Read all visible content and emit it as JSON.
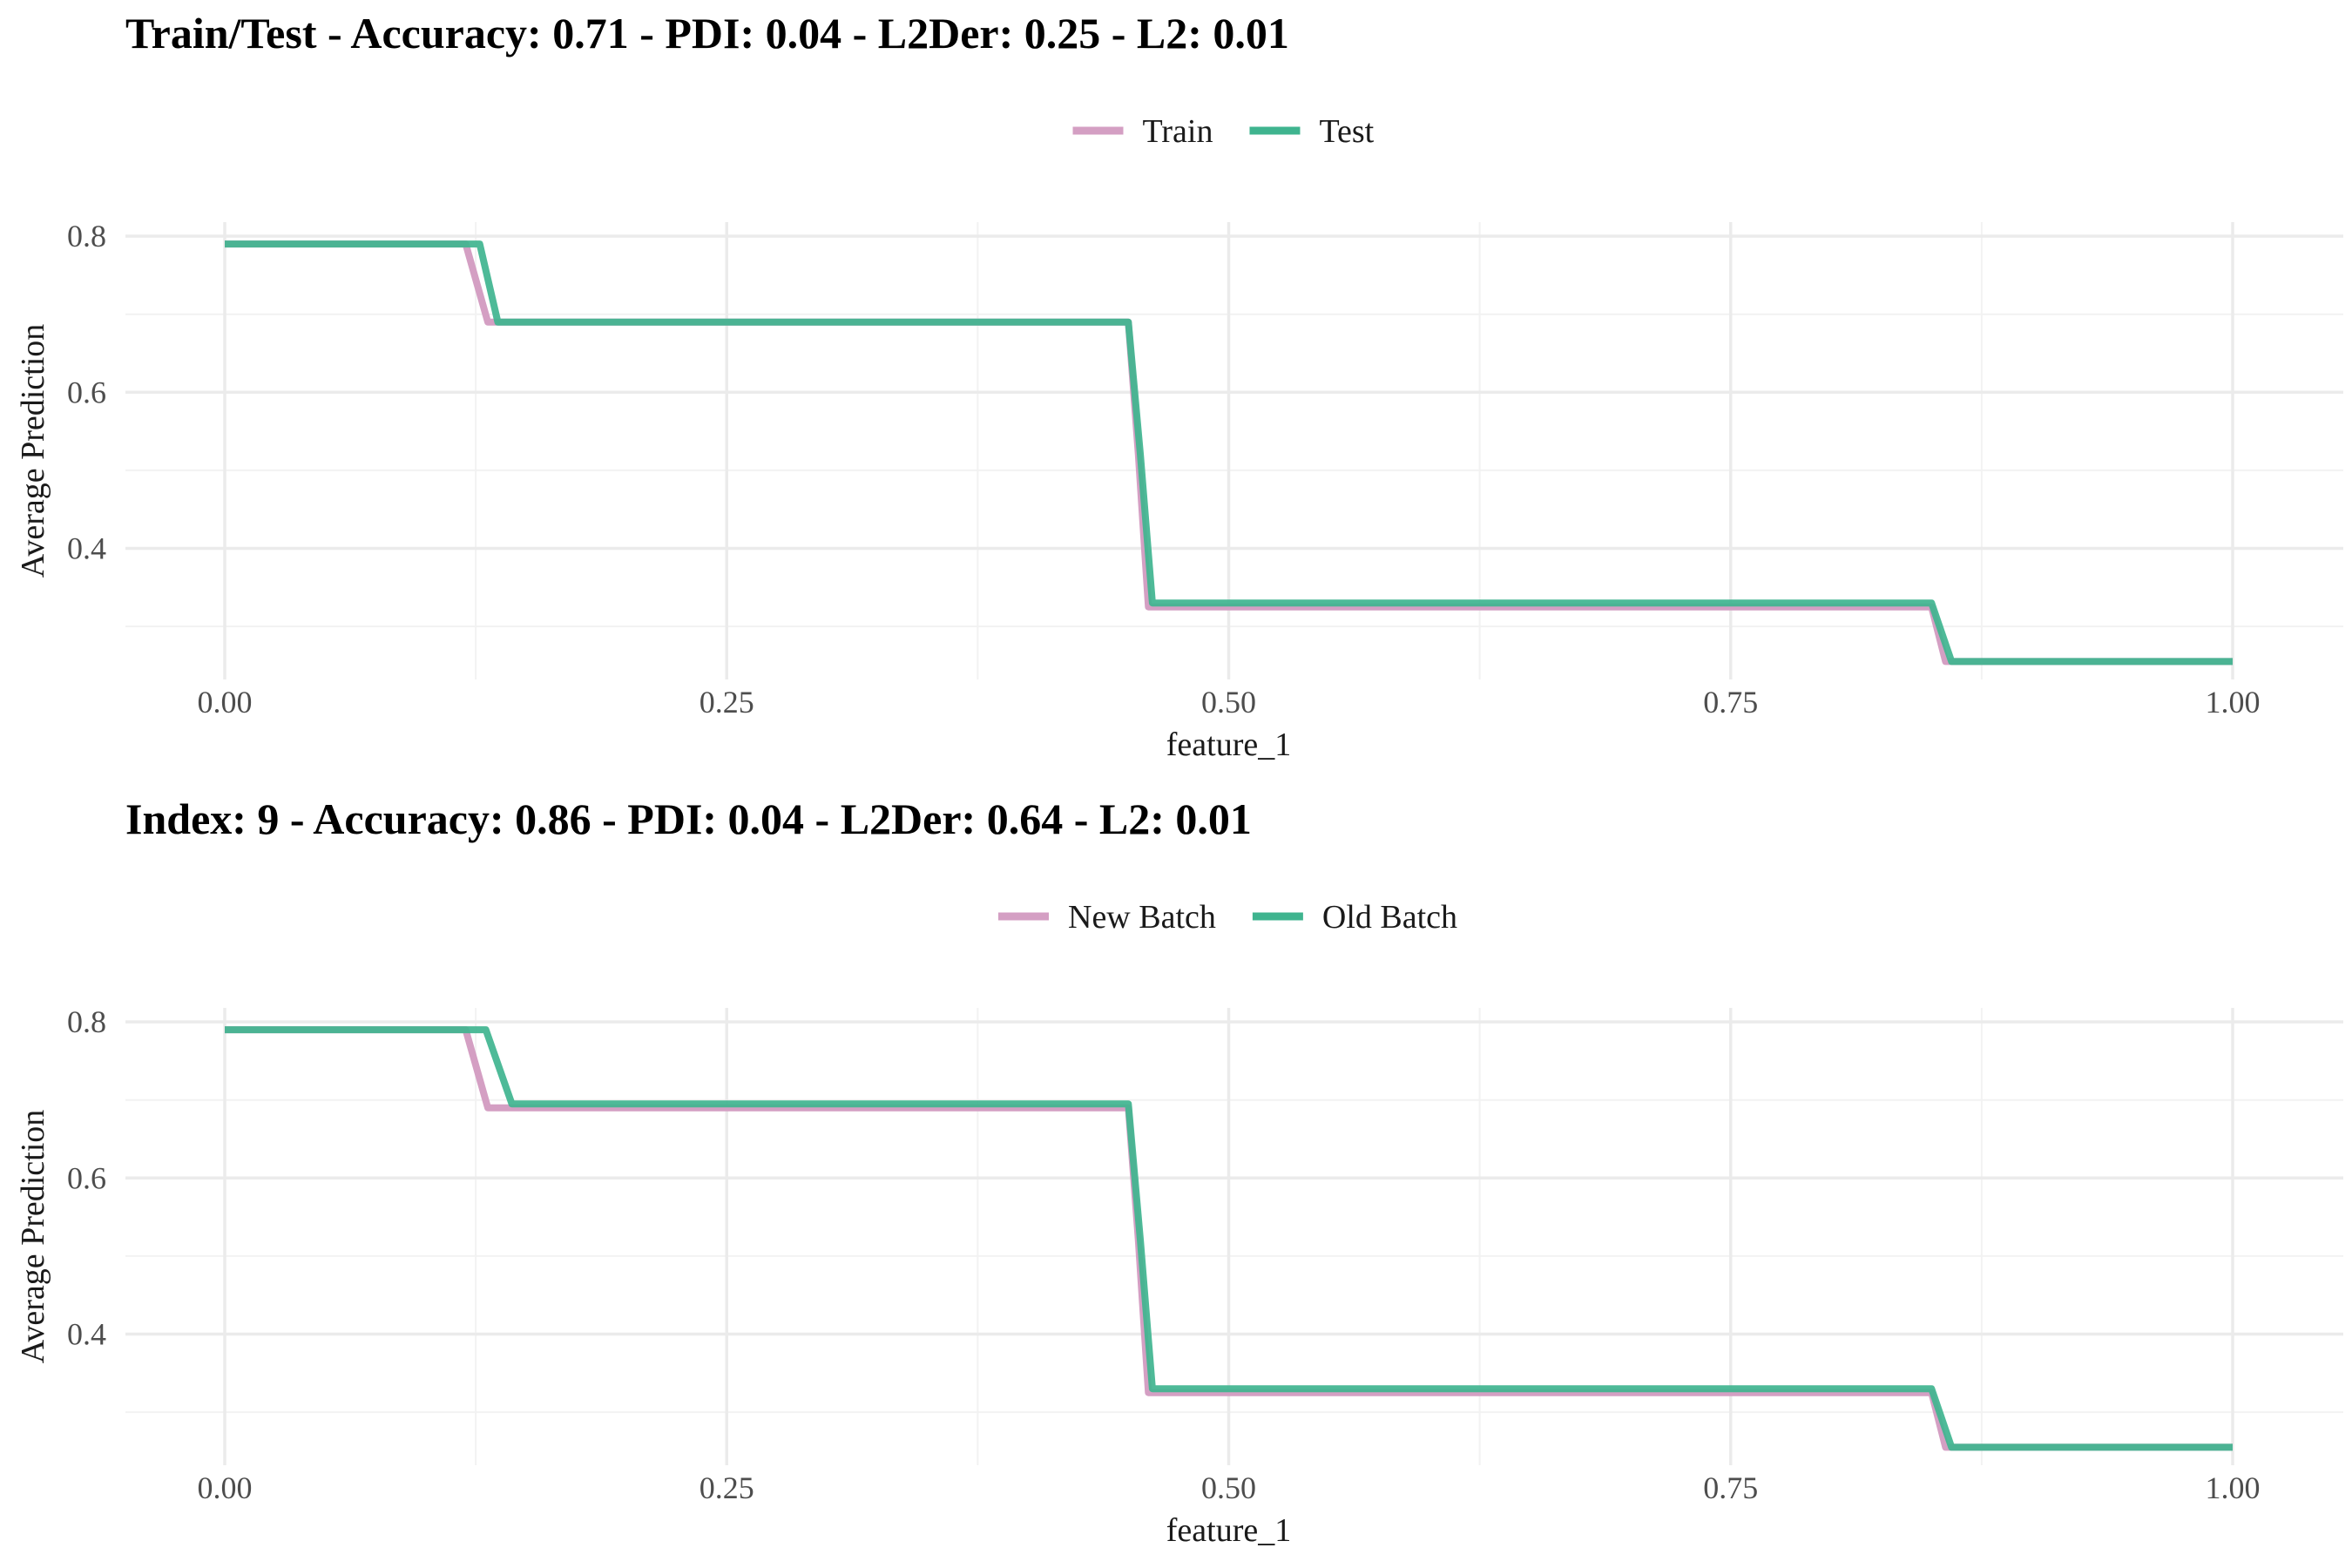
{
  "colors": {
    "series_a": "#d49fc3",
    "series_b": "#3fb48f"
  },
  "chart_data": [
    {
      "type": "line",
      "title": "Train/Test - Accuracy: 0.71 - PDI: 0.04 - L2Der: 0.25 - L2: 0.01",
      "xlabel": "feature_1",
      "ylabel": "Average Prediction",
      "xlim": [
        0,
        1
      ],
      "ylim": [
        0.232,
        0.818
      ],
      "x_ticks": [
        "0.00",
        "0.25",
        "0.50",
        "0.75",
        "1.00"
      ],
      "y_ticks": [
        "0.4",
        "0.6",
        "0.8"
      ],
      "grid": true,
      "legend_position": "top-center",
      "series": [
        {
          "name": "Train",
          "color": "#d49fc3",
          "x": [
            0.0,
            0.12,
            0.131,
            0.45,
            0.455,
            0.46,
            0.85,
            0.857,
            1.0
          ],
          "y": [
            0.79,
            0.79,
            0.69,
            0.69,
            0.52,
            0.325,
            0.325,
            0.255,
            0.255
          ]
        },
        {
          "name": "Test",
          "color": "#3fb48f",
          "x": [
            0.0,
            0.127,
            0.136,
            0.45,
            0.456,
            0.462,
            0.85,
            0.86,
            1.0
          ],
          "y": [
            0.79,
            0.79,
            0.69,
            0.69,
            0.52,
            0.33,
            0.33,
            0.255,
            0.255
          ]
        }
      ]
    },
    {
      "type": "line",
      "title": "Index: 9 - Accuracy: 0.86 - PDI: 0.04 - L2Der: 0.64 - L2: 0.01",
      "xlabel": "feature_1",
      "ylabel": "Average Prediction",
      "xlim": [
        0,
        1
      ],
      "ylim": [
        0.232,
        0.818
      ],
      "x_ticks": [
        "0.00",
        "0.25",
        "0.50",
        "0.75",
        "1.00"
      ],
      "y_ticks": [
        "0.4",
        "0.6",
        "0.8"
      ],
      "grid": true,
      "legend_position": "top-center",
      "series": [
        {
          "name": "New Batch",
          "color": "#d49fc3",
          "x": [
            0.0,
            0.12,
            0.131,
            0.45,
            0.455,
            0.46,
            0.85,
            0.857,
            1.0
          ],
          "y": [
            0.79,
            0.79,
            0.69,
            0.69,
            0.52,
            0.325,
            0.325,
            0.255,
            0.255
          ]
        },
        {
          "name": "Old Batch",
          "color": "#3fb48f",
          "x": [
            0.0,
            0.13,
            0.143,
            0.45,
            0.456,
            0.462,
            0.85,
            0.86,
            1.0
          ],
          "y": [
            0.79,
            0.79,
            0.695,
            0.695,
            0.52,
            0.33,
            0.33,
            0.255,
            0.255
          ]
        }
      ]
    }
  ]
}
